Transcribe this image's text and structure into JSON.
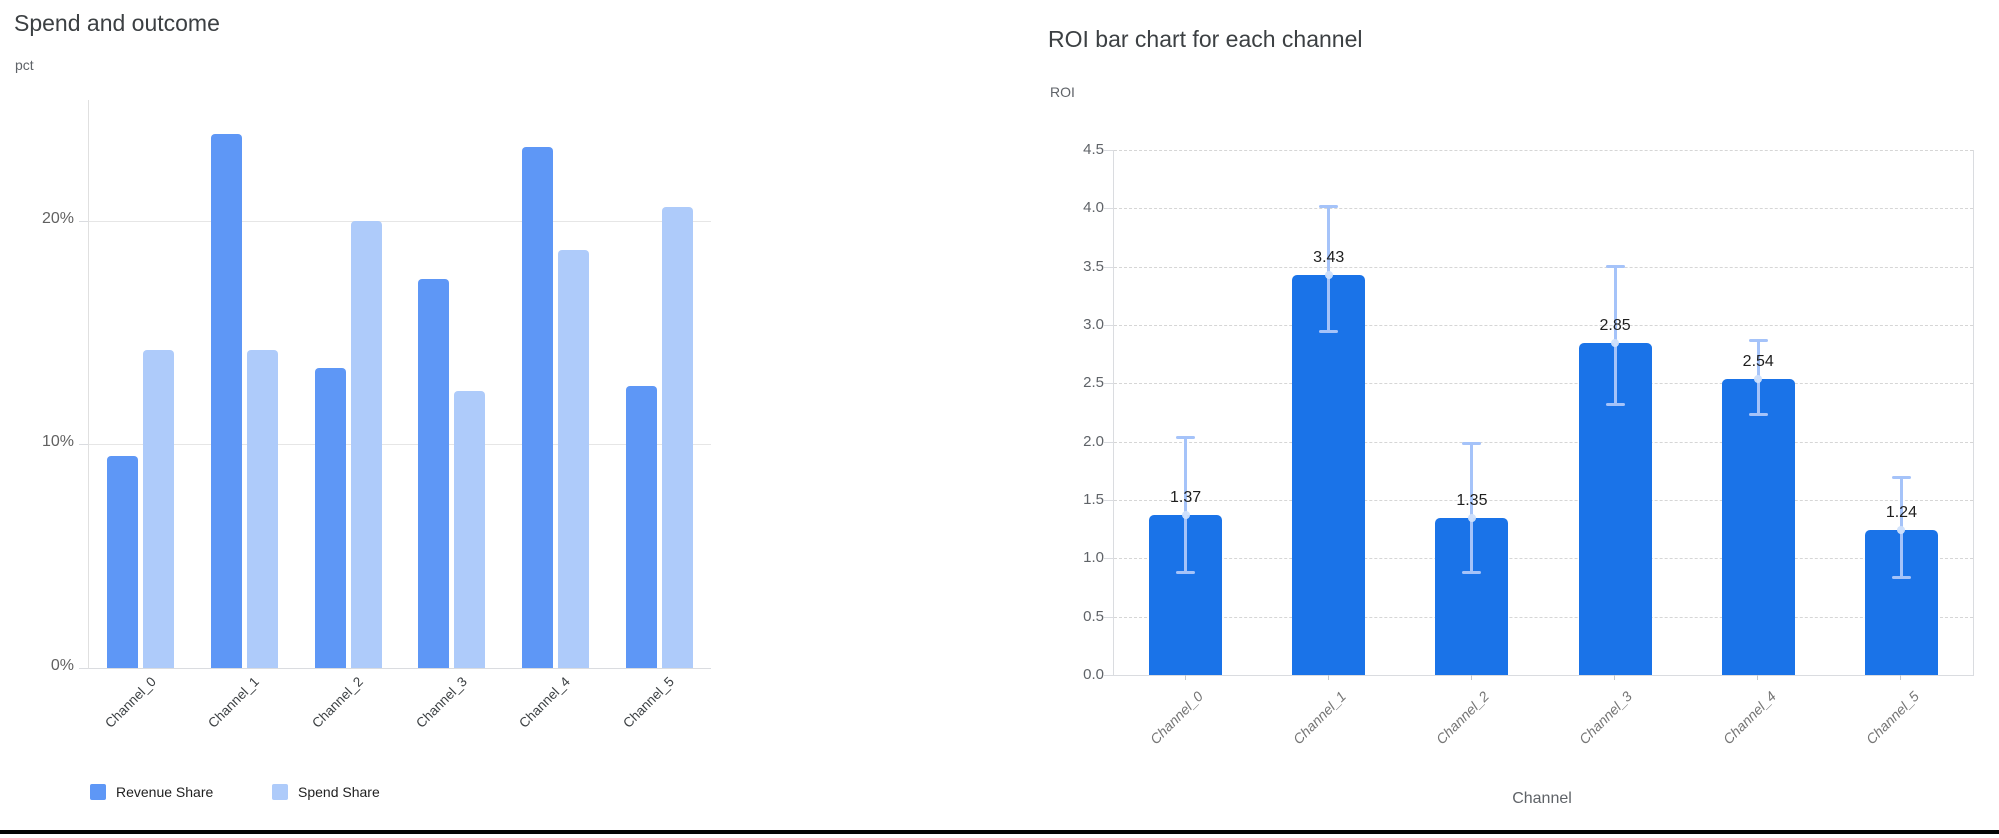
{
  "page": {
    "background": "#ffffff",
    "bottom_divider_color": "#050505"
  },
  "chart_data": [
    {
      "type": "bar",
      "variant": "grouped-vertical",
      "title": "Spend and outcome",
      "ylabel": "pct",
      "xlabel": "",
      "categories": [
        "Channel_0",
        "Channel_1",
        "Channel_2",
        "Channel_3",
        "Channel_4",
        "Channel_5"
      ],
      "series": [
        {
          "name": "Revenue Share",
          "color": "#5e97f6",
          "values": [
            9.5,
            23.9,
            13.4,
            17.4,
            23.3,
            12.6
          ]
        },
        {
          "name": "Spend Share",
          "color": "#aecbfa",
          "values": [
            14.2,
            14.2,
            20.0,
            12.4,
            18.7,
            20.6
          ]
        }
      ],
      "unit": "%",
      "y_ticks": [
        {
          "value": 0,
          "label": "0%"
        },
        {
          "value": 10,
          "label": "10%"
        },
        {
          "value": 20,
          "label": "20%"
        }
      ],
      "ylim": [
        0,
        25.4
      ],
      "grid": "solid horizontal at 10% and 20%",
      "legend_position": "bottom-left",
      "x_labels_rotated_45": true
    },
    {
      "type": "bar",
      "variant": "single-series-with-error-bars",
      "title": "ROI bar chart for each channel",
      "ylabel": "ROI",
      "xlabel": "Channel",
      "categories": [
        "Channel_0",
        "Channel_1",
        "Channel_2",
        "Channel_3",
        "Channel_4",
        "Channel_5"
      ],
      "values": [
        1.37,
        3.43,
        1.35,
        2.85,
        2.54,
        1.24
      ],
      "value_labels": [
        "1.37",
        "3.43",
        "1.35",
        "2.85",
        "2.54",
        "1.24"
      ],
      "error_low": [
        0.88,
        2.95,
        0.88,
        2.32,
        2.24,
        0.84
      ],
      "error_high": [
        2.04,
        4.02,
        1.99,
        3.51,
        2.87,
        1.7
      ],
      "bar_color": "#1a73e8",
      "error_bar_color": "#a5c3f9",
      "error_dot_color": "#cfe0fc",
      "y_ticks": [
        {
          "value": 0.0,
          "label": "0.0"
        },
        {
          "value": 0.5,
          "label": "0.5"
        },
        {
          "value": 1.0,
          "label": "1.0"
        },
        {
          "value": 1.5,
          "label": "1.5"
        },
        {
          "value": 2.0,
          "label": "2.0"
        },
        {
          "value": 2.5,
          "label": "2.5"
        },
        {
          "value": 3.0,
          "label": "3.0"
        },
        {
          "value": 3.5,
          "label": "3.5"
        },
        {
          "value": 4.0,
          "label": "4.0"
        },
        {
          "value": 4.5,
          "label": "4.5"
        }
      ],
      "ylim": [
        0,
        4.5
      ],
      "grid": "dashed horizontal every 0.5",
      "legend_position": "none",
      "x_labels_rotated_45": true,
      "x_labels_italic": true
    }
  ]
}
